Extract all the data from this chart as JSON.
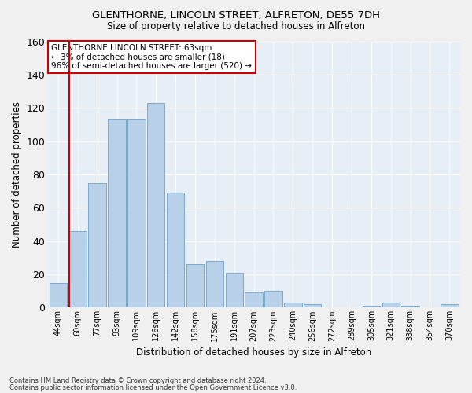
{
  "title1": "GLENTHORNE, LINCOLN STREET, ALFRETON, DE55 7DH",
  "title2": "Size of property relative to detached houses in Alfreton",
  "xlabel": "Distribution of detached houses by size in Alfreton",
  "ylabel": "Number of detached properties",
  "bar_color": "#b8d0e8",
  "bar_edge_color": "#7aaacf",
  "categories": [
    "44sqm",
    "60sqm",
    "77sqm",
    "93sqm",
    "109sqm",
    "126sqm",
    "142sqm",
    "158sqm",
    "175sqm",
    "191sqm",
    "207sqm",
    "223sqm",
    "240sqm",
    "256sqm",
    "272sqm",
    "289sqm",
    "305sqm",
    "321sqm",
    "338sqm",
    "354sqm",
    "370sqm"
  ],
  "values": [
    15,
    46,
    75,
    113,
    113,
    123,
    69,
    26,
    28,
    21,
    9,
    10,
    3,
    2,
    0,
    0,
    1,
    3,
    1,
    0,
    2
  ],
  "ylim": [
    0,
    160
  ],
  "yticks": [
    0,
    20,
    40,
    60,
    80,
    100,
    120,
    140,
    160
  ],
  "vline_color": "#cc0000",
  "annotation_text": "GLENTHORNE LINCOLN STREET: 63sqm\n← 3% of detached houses are smaller (18)\n96% of semi-detached houses are larger (520) →",
  "annotation_box_edge": "#cc0000",
  "footnote1": "Contains HM Land Registry data © Crown copyright and database right 2024.",
  "footnote2": "Contains public sector information licensed under the Open Government Licence v3.0.",
  "background_color": "#e8eef5",
  "grid_color": "#ffffff",
  "fig_background": "#f0f0f0"
}
